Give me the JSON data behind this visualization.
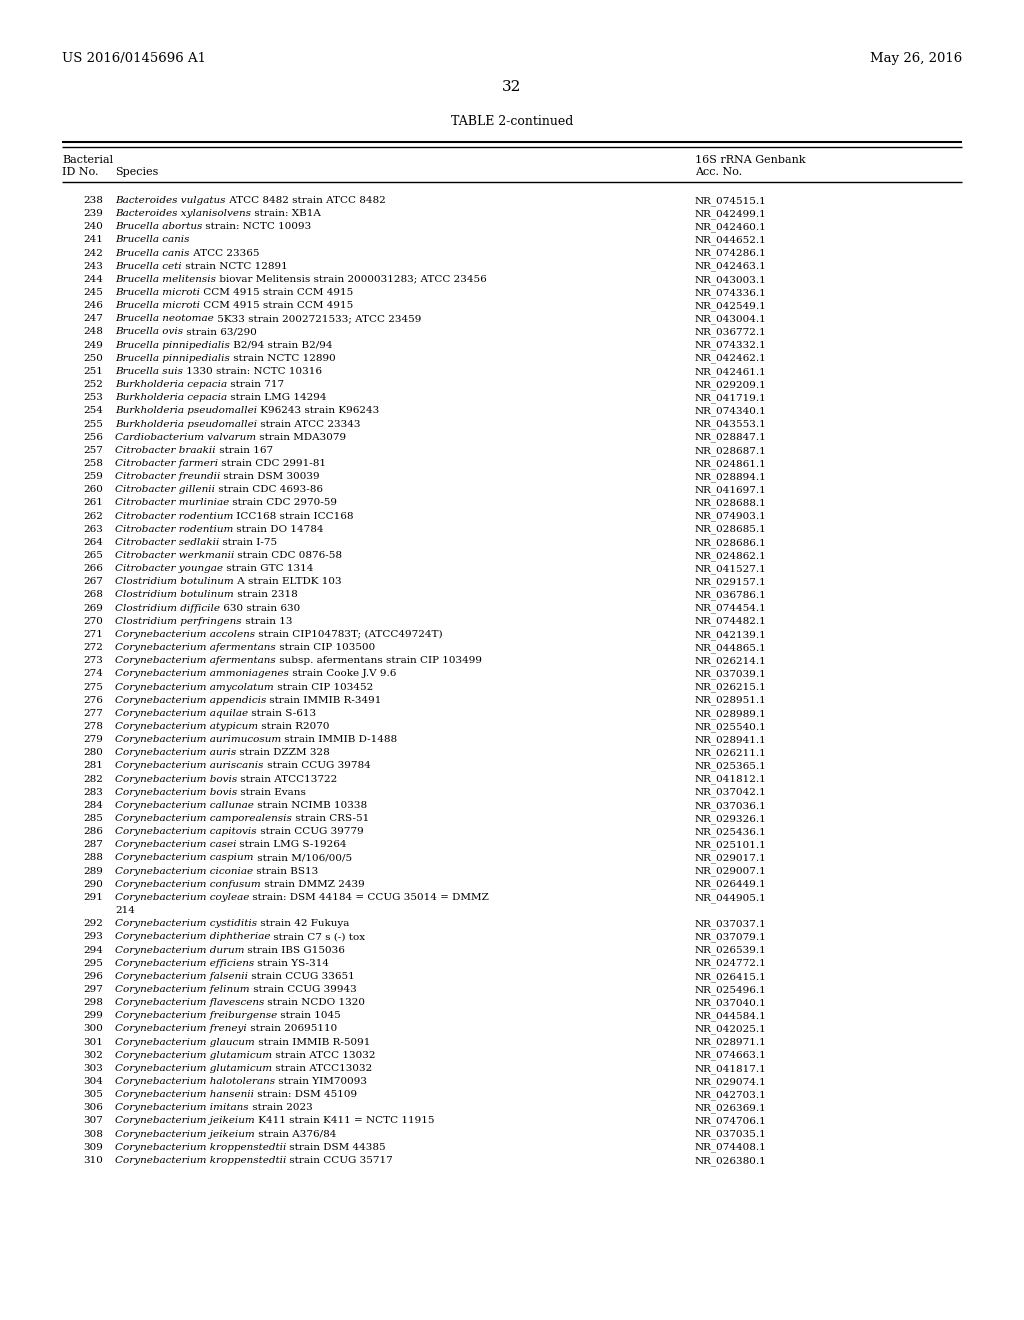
{
  "page_number": "32",
  "patent_number": "US 2016/0145696 A1",
  "patent_date": "May 26, 2016",
  "table_title": "TABLE 2-continued",
  "rows": [
    [
      "238",
      "Bacteroides vulgatus",
      " ATCC 8482 strain ATCC 8482",
      "NR_074515.1"
    ],
    [
      "239",
      "Bacteroides xylanisolvens",
      " strain: XB1A",
      "NR_042499.1"
    ],
    [
      "240",
      "Brucella abortus",
      " strain: NCTC 10093",
      "NR_042460.1"
    ],
    [
      "241",
      "Brucella canis",
      "",
      "NR_044652.1"
    ],
    [
      "242",
      "Brucella canis",
      " ATCC 23365",
      "NR_074286.1"
    ],
    [
      "243",
      "Brucella ceti",
      " strain NCTC 12891",
      "NR_042463.1"
    ],
    [
      "244",
      "Brucella melitensis",
      " biovar Melitensis strain 2000031283; ATCC 23456",
      "NR_043003.1"
    ],
    [
      "245",
      "Brucella microti",
      " CCM 4915 strain CCM 4915",
      "NR_074336.1"
    ],
    [
      "246",
      "Brucella microti",
      " CCM 4915 strain CCM 4915",
      "NR_042549.1"
    ],
    [
      "247",
      "Brucella neotomae",
      " 5K33 strain 2002721533; ATCC 23459",
      "NR_043004.1"
    ],
    [
      "248",
      "Brucella ovis",
      " strain 63/290",
      "NR_036772.1"
    ],
    [
      "249",
      "Brucella pinnipedialis",
      " B2/94 strain B2/94",
      "NR_074332.1"
    ],
    [
      "250",
      "Brucella pinnipedialis",
      " strain NCTC 12890",
      "NR_042462.1"
    ],
    [
      "251",
      "Brucella suis",
      " 1330 strain: NCTC 10316",
      "NR_042461.1"
    ],
    [
      "252",
      "Burkholderia cepacia",
      " strain 717",
      "NR_029209.1"
    ],
    [
      "253",
      "Burkholderia cepacia",
      " strain LMG 14294",
      "NR_041719.1"
    ],
    [
      "254",
      "Burkholderia pseudomallei",
      " K96243 strain K96243",
      "NR_074340.1"
    ],
    [
      "255",
      "Burkholderia pseudomallei",
      " strain ATCC 23343",
      "NR_043553.1"
    ],
    [
      "256",
      "Cardiobacterium valvarum",
      " strain MDA3079",
      "NR_028847.1"
    ],
    [
      "257",
      "Citrobacter braakii",
      " strain 167",
      "NR_028687.1"
    ],
    [
      "258",
      "Citrobacter farmeri",
      " strain CDC 2991-81",
      "NR_024861.1"
    ],
    [
      "259",
      "Citrobacter freundii",
      " strain DSM 30039",
      "NR_028894.1"
    ],
    [
      "260",
      "Citrobacter gillenii",
      " strain CDC 4693-86",
      "NR_041697.1"
    ],
    [
      "261",
      "Citrobacter murliniae",
      " strain CDC 2970-59",
      "NR_028688.1"
    ],
    [
      "262",
      "Citrobacter rodentium",
      " ICC168 strain ICC168",
      "NR_074903.1"
    ],
    [
      "263",
      "Citrobacter rodentium",
      " strain DO 14784",
      "NR_028685.1"
    ],
    [
      "264",
      "Citrobacter sedlakii",
      " strain I-75",
      "NR_028686.1"
    ],
    [
      "265",
      "Citrobacter werkmanii",
      " strain CDC 0876-58",
      "NR_024862.1"
    ],
    [
      "266",
      "Citrobacter youngae",
      " strain GTC 1314",
      "NR_041527.1"
    ],
    [
      "267",
      "Clostridium botulinum",
      " A strain ELTDK 103",
      "NR_029157.1"
    ],
    [
      "268",
      "Clostridium botulinum",
      " strain 2318",
      "NR_036786.1"
    ],
    [
      "269",
      "Clostridium difficile",
      " 630 strain 630",
      "NR_074454.1"
    ],
    [
      "270",
      "Clostridium perfringens",
      " strain 13",
      "NR_074482.1"
    ],
    [
      "271",
      "Corynebacterium accolens",
      " strain CIP104783T; (ATCC49724T)",
      "NR_042139.1"
    ],
    [
      "272",
      "Corynebacterium afermentans",
      " strain CIP 103500",
      "NR_044865.1"
    ],
    [
      "273",
      "Corynebacterium afermentans",
      " subsp. afermentans strain CIP 103499",
      "NR_026214.1"
    ],
    [
      "274",
      "Corynebacterium ammoniagenes",
      " strain Cooke J.V 9.6",
      "NR_037039.1"
    ],
    [
      "275",
      "Corynebacterium amycolatum",
      " strain CIP 103452",
      "NR_026215.1"
    ],
    [
      "276",
      "Corynebacterium appendicis",
      " strain IMMIB R-3491",
      "NR_028951.1"
    ],
    [
      "277",
      "Corynebacterium aquilae",
      " strain S-613",
      "NR_028989.1"
    ],
    [
      "278",
      "Corynebacterium atypicum",
      " strain R2070",
      "NR_025540.1"
    ],
    [
      "279",
      "Corynebacterium aurimucosum",
      " strain IMMIB D-1488",
      "NR_028941.1"
    ],
    [
      "280",
      "Corynebacterium auris",
      " strain DZZM 328",
      "NR_026211.1"
    ],
    [
      "281",
      "Corynebacterium auriscanis",
      " strain CCUG 39784",
      "NR_025365.1"
    ],
    [
      "282",
      "Corynebacterium bovis",
      " strain ATCC13722",
      "NR_041812.1"
    ],
    [
      "283",
      "Corynebacterium bovis",
      " strain Evans",
      "NR_037042.1"
    ],
    [
      "284",
      "Corynebacterium callunae",
      " strain NCIMB 10338",
      "NR_037036.1"
    ],
    [
      "285",
      "Corynebacterium camporealensis",
      " strain CRS-51",
      "NR_029326.1"
    ],
    [
      "286",
      "Corynebacterium capitovis",
      " strain CCUG 39779",
      "NR_025436.1"
    ],
    [
      "287",
      "Corynebacterium casei",
      " strain LMG S-19264",
      "NR_025101.1"
    ],
    [
      "288",
      "Corynebacterium caspium",
      " strain M/106/00/5",
      "NR_029017.1"
    ],
    [
      "289",
      "Corynebacterium ciconiae",
      " strain BS13",
      "NR_029007.1"
    ],
    [
      "290",
      "Corynebacterium confusum",
      " strain DMMZ 2439",
      "NR_026449.1"
    ],
    [
      "291",
      "Corynebacterium coyleae",
      " strain: DSM 44184 = CCUG 35014 = DMMZ\n214",
      "NR_044905.1"
    ],
    [
      "292",
      "Corynebacterium cystiditis",
      " strain 42 Fukuya",
      "NR_037037.1"
    ],
    [
      "293",
      "Corynebacterium diphtheriae",
      " strain C7 s (-) tox",
      "NR_037079.1"
    ],
    [
      "294",
      "Corynebacterium durum",
      " strain IBS G15036",
      "NR_026539.1"
    ],
    [
      "295",
      "Corynebacterium efficiens",
      " strain YS-314",
      "NR_024772.1"
    ],
    [
      "296",
      "Corynebacterium falsenii",
      " strain CCUG 33651",
      "NR_026415.1"
    ],
    [
      "297",
      "Corynebacterium felinum",
      " strain CCUG 39943",
      "NR_025496.1"
    ],
    [
      "298",
      "Corynebacterium flavescens",
      " strain NCDO 1320",
      "NR_037040.1"
    ],
    [
      "299",
      "Corynebacterium freiburgense",
      " strain 1045",
      "NR_044584.1"
    ],
    [
      "300",
      "Corynebacterium freneyi",
      " strain 20695110",
      "NR_042025.1"
    ],
    [
      "301",
      "Corynebacterium glaucum",
      " strain IMMIB R-5091",
      "NR_028971.1"
    ],
    [
      "302",
      "Corynebacterium glutamicum",
      " strain ATCC 13032",
      "NR_074663.1"
    ],
    [
      "303",
      "Corynebacterium glutamicum",
      " strain ATCC13032",
      "NR_041817.1"
    ],
    [
      "304",
      "Corynebacterium halotolerans",
      " strain YIM70093",
      "NR_029074.1"
    ],
    [
      "305",
      "Corynebacterium hansenii",
      " strain: DSM 45109",
      "NR_042703.1"
    ],
    [
      "306",
      "Corynebacterium imitans",
      " strain 2023",
      "NR_026369.1"
    ],
    [
      "307",
      "Corynebacterium jeikeium",
      " K411 strain K411 = NCTC 11915",
      "NR_074706.1"
    ],
    [
      "308",
      "Corynebacterium jeikeium",
      " strain A376/84",
      "NR_037035.1"
    ],
    [
      "309",
      "Corynebacterium kroppenstedtii",
      " strain DSM 44385",
      "NR_074408.1"
    ],
    [
      "310",
      "Corynebacterium kroppenstedtii",
      " strain CCUG 35717",
      "NR_026380.1"
    ]
  ],
  "bg_color": "#ffffff",
  "text_color": "#000000"
}
